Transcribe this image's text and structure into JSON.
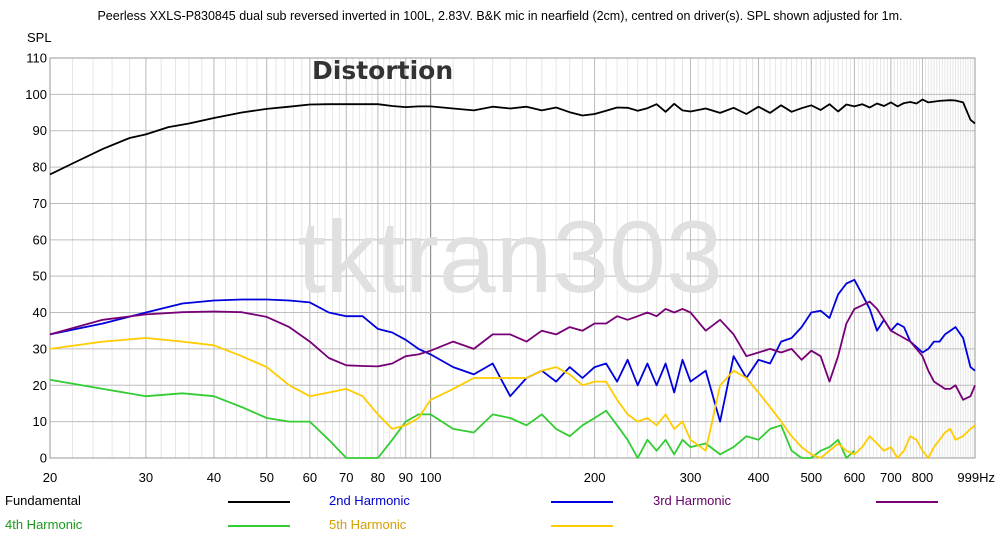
{
  "chart_data": {
    "type": "line",
    "title": "Peerless XXLS-P830845 dual sub reversed inverted in 100L, 2.83V. B&K mic in nearfield (2cm), centred on driver(s). SPL shown adjusted for 1m.",
    "overlay_title": "Distortion",
    "watermark": "tktran303",
    "ylabel": "SPL",
    "x_scale": "log",
    "xlim": [
      20,
      999
    ],
    "ylim": [
      0,
      110
    ],
    "x_ticks": [
      {
        "value": 20,
        "label": "20"
      },
      {
        "value": 30,
        "label": "30"
      },
      {
        "value": 40,
        "label": "40"
      },
      {
        "value": 50,
        "label": "50"
      },
      {
        "value": 60,
        "label": "60"
      },
      {
        "value": 70,
        "label": "70"
      },
      {
        "value": 80,
        "label": "80"
      },
      {
        "value": 90,
        "label": "90"
      },
      {
        "value": 100,
        "label": "100"
      },
      {
        "value": 200,
        "label": "200"
      },
      {
        "value": 300,
        "label": "300"
      },
      {
        "value": 400,
        "label": "400"
      },
      {
        "value": 500,
        "label": "500"
      },
      {
        "value": 600,
        "label": "600"
      },
      {
        "value": 700,
        "label": "700"
      },
      {
        "value": 800,
        "label": "800"
      },
      {
        "value": 999,
        "label": "999Hz"
      }
    ],
    "y_ticks": [
      "0",
      "10",
      "20",
      "30",
      "40",
      "50",
      "60",
      "70",
      "80",
      "90",
      "100",
      "110"
    ],
    "grid": true,
    "legend_position": "bottom",
    "series": [
      {
        "name": "Fundamental",
        "color": "#000000",
        "x": [
          20,
          22,
          25,
          28,
          30,
          33,
          36,
          40,
          45,
          50,
          55,
          60,
          65,
          70,
          75,
          80,
          85,
          90,
          95,
          100,
          110,
          120,
          130,
          140,
          150,
          160,
          170,
          180,
          190,
          200,
          210,
          220,
          230,
          240,
          250,
          260,
          270,
          280,
          290,
          300,
          320,
          340,
          360,
          380,
          400,
          420,
          440,
          460,
          480,
          500,
          520,
          540,
          560,
          580,
          600,
          620,
          640,
          660,
          680,
          700,
          720,
          740,
          760,
          780,
          800,
          820,
          840,
          860,
          880,
          900,
          920,
          950,
          980,
          999
        ],
        "y": [
          78,
          81,
          85,
          88,
          89,
          91,
          92,
          93.5,
          95,
          96,
          96.6,
          97.2,
          97.3,
          97.3,
          97.3,
          97.3,
          96.8,
          96.5,
          96.7,
          96.7,
          96.1,
          95.6,
          96.6,
          96.1,
          96.6,
          95.6,
          96.4,
          95.1,
          94.2,
          94.6,
          95.5,
          96.4,
          96.3,
          95.5,
          96.2,
          97.3,
          95.2,
          97.4,
          95.6,
          95.3,
          96.1,
          94.9,
          96.3,
          94.6,
          96.6,
          94.9,
          97.0,
          95.2,
          96.2,
          97.0,
          95.7,
          97.3,
          95.3,
          97.2,
          96.7,
          97.3,
          96.4,
          97.5,
          96.8,
          97.8,
          96.7,
          97.6,
          97.9,
          97.5,
          98.6,
          97.8,
          98.0,
          98.2,
          98.3,
          98.4,
          98.3,
          97.8,
          93,
          92
        ]
      },
      {
        "name": "2nd Harmonic",
        "color": "#0000dd",
        "x": [
          20,
          25,
          30,
          35,
          40,
          45,
          50,
          55,
          60,
          65,
          70,
          75,
          80,
          85,
          90,
          95,
          100,
          110,
          120,
          130,
          140,
          150,
          160,
          170,
          180,
          190,
          200,
          210,
          220,
          230,
          240,
          250,
          260,
          270,
          280,
          290,
          300,
          320,
          340,
          360,
          380,
          400,
          420,
          440,
          460,
          480,
          500,
          520,
          540,
          560,
          580,
          600,
          620,
          640,
          660,
          680,
          700,
          720,
          740,
          760,
          780,
          800,
          820,
          840,
          860,
          880,
          900,
          920,
          950,
          980,
          999
        ],
        "y": [
          34,
          37,
          40,
          42.5,
          43.3,
          43.6,
          43.6,
          43.3,
          42.8,
          40,
          39,
          39,
          35.5,
          34.5,
          32.5,
          30,
          28.5,
          25,
          23,
          26,
          17,
          22,
          24,
          21,
          25,
          22,
          25,
          26,
          21,
          27,
          20,
          26,
          20,
          26,
          18,
          27,
          21,
          24,
          10,
          28,
          22,
          27,
          26,
          32,
          33,
          36,
          40,
          40.5,
          38.5,
          45,
          48,
          49,
          45,
          41,
          35,
          38,
          35,
          37,
          36,
          32,
          30.5,
          29,
          30,
          32,
          32,
          34,
          35,
          36,
          33,
          25,
          24
        ]
      },
      {
        "name": "3rd Harmonic",
        "color": "#770077",
        "x": [
          20,
          25,
          30,
          35,
          40,
          45,
          50,
          55,
          60,
          65,
          70,
          75,
          80,
          85,
          90,
          95,
          100,
          110,
          120,
          130,
          140,
          150,
          160,
          170,
          180,
          190,
          200,
          210,
          220,
          230,
          240,
          250,
          260,
          270,
          280,
          290,
          300,
          320,
          340,
          360,
          380,
          400,
          420,
          440,
          460,
          480,
          500,
          520,
          540,
          560,
          580,
          600,
          620,
          640,
          660,
          680,
          700,
          720,
          740,
          760,
          780,
          800,
          820,
          840,
          860,
          880,
          900,
          920,
          950,
          980,
          999
        ],
        "y": [
          34,
          38,
          39.5,
          40.1,
          40.3,
          40.1,
          38.8,
          36,
          32,
          27.5,
          25.5,
          25.3,
          25.2,
          26,
          28,
          28.5,
          29.5,
          32,
          30,
          34,
          34,
          32,
          35,
          34,
          36,
          35,
          37,
          37,
          39,
          38,
          39,
          40,
          39,
          41,
          40,
          41,
          40,
          35,
          38,
          34,
          28,
          29,
          30,
          29,
          30,
          27,
          29.5,
          28,
          21,
          28,
          37,
          41,
          42,
          43,
          41,
          38,
          35,
          34,
          33,
          32,
          30,
          28,
          24,
          21,
          20,
          19,
          19,
          20,
          16,
          17,
          20
        ]
      },
      {
        "name": "4th Harmonic",
        "color": "#33cc33",
        "x": [
          20,
          25,
          30,
          35,
          40,
          45,
          50,
          55,
          60,
          65,
          70,
          75,
          80,
          85,
          90,
          95,
          100,
          110,
          120,
          130,
          140,
          150,
          160,
          170,
          180,
          190,
          200,
          210,
          220,
          230,
          240,
          250,
          260,
          270,
          280,
          290,
          300,
          320,
          340,
          360,
          380,
          400,
          420,
          440,
          460,
          480,
          500,
          520,
          540,
          560,
          580,
          600
        ],
        "y": [
          21.5,
          19,
          17,
          17.8,
          17,
          14,
          11,
          10,
          10,
          5,
          0,
          0,
          0,
          5,
          10,
          12,
          12,
          8,
          7,
          12,
          11,
          9,
          12,
          8,
          6,
          9,
          11,
          13,
          9,
          5,
          0,
          5,
          2,
          5,
          1,
          5,
          3,
          4,
          1,
          3,
          6,
          5,
          8,
          9,
          2,
          0,
          0,
          2,
          3,
          5,
          0,
          2
        ]
      },
      {
        "name": "5th Harmonic",
        "color": "#ffcc00",
        "x": [
          20,
          25,
          30,
          35,
          40,
          45,
          50,
          55,
          60,
          65,
          70,
          75,
          80,
          85,
          90,
          95,
          100,
          110,
          120,
          130,
          140,
          150,
          160,
          170,
          180,
          190,
          200,
          210,
          220,
          230,
          240,
          250,
          260,
          270,
          280,
          290,
          300,
          320,
          340,
          360,
          380,
          400,
          420,
          440,
          460,
          480,
          500,
          520,
          540,
          560,
          580,
          600,
          620,
          640,
          660,
          680,
          700,
          720,
          740,
          760,
          780,
          800,
          820,
          840,
          860,
          880,
          900,
          920,
          950,
          980,
          999
        ],
        "y": [
          30,
          32,
          33,
          32,
          31,
          28,
          25,
          20,
          17,
          18,
          19,
          17,
          12,
          8,
          9,
          11,
          16,
          19,
          22,
          22,
          22,
          22,
          24,
          25,
          23,
          20,
          21,
          21,
          16,
          12,
          10,
          11,
          9,
          12,
          8,
          10,
          5,
          2,
          20,
          24,
          22,
          18,
          14,
          10,
          6,
          3,
          1,
          0,
          2,
          4,
          2,
          1,
          3,
          6,
          4,
          2,
          3,
          0,
          2,
          6,
          5,
          2,
          0,
          3,
          5,
          7,
          8,
          5,
          6,
          8,
          9
        ]
      }
    ]
  }
}
